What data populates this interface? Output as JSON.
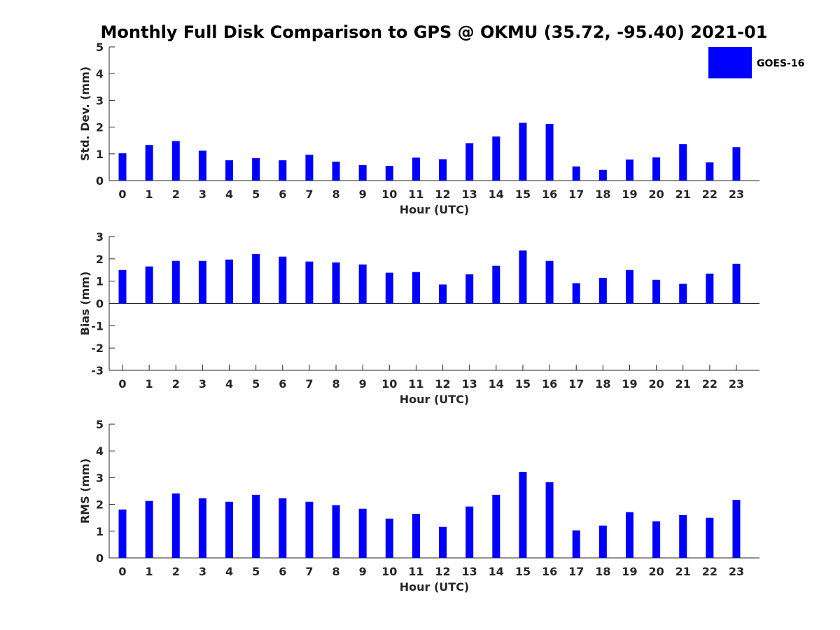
{
  "title": "Monthly Full Disk Comparison to GPS @ OKMU (35.72, -95.40) 2021-01",
  "legend": {
    "label": "GOES-16",
    "color": "#0000ff"
  },
  "chart_data": [
    {
      "type": "bar",
      "name": "std-dev",
      "xlabel": "Hour (UTC)",
      "ylabel": "Std. Dev. (mm)",
      "ylim": [
        0,
        5
      ],
      "yticks": [
        0,
        1,
        2,
        3,
        4,
        5
      ],
      "categories": [
        "0",
        "1",
        "2",
        "3",
        "4",
        "5",
        "6",
        "7",
        "8",
        "9",
        "10",
        "11",
        "12",
        "13",
        "14",
        "15",
        "16",
        "17",
        "18",
        "19",
        "20",
        "21",
        "22",
        "23"
      ],
      "series": [
        {
          "name": "GOES-16",
          "values": [
            1.02,
            1.33,
            1.48,
            1.12,
            0.76,
            0.84,
            0.76,
            0.97,
            0.71,
            0.58,
            0.55,
            0.86,
            0.8,
            1.4,
            1.65,
            2.16,
            2.12,
            0.53,
            0.4,
            0.79,
            0.87,
            1.36,
            0.68,
            1.25
          ]
        }
      ]
    },
    {
      "type": "bar",
      "name": "bias",
      "xlabel": "Hour (UTC)",
      "ylabel": "Bias (mm)",
      "ylim": [
        -3,
        3
      ],
      "yticks": [
        -3,
        -2,
        -1,
        0,
        1,
        2,
        3
      ],
      "categories": [
        "0",
        "1",
        "2",
        "3",
        "4",
        "5",
        "6",
        "7",
        "8",
        "9",
        "10",
        "11",
        "12",
        "13",
        "14",
        "15",
        "16",
        "17",
        "18",
        "19",
        "20",
        "21",
        "22",
        "23"
      ],
      "series": [
        {
          "name": "GOES-16",
          "values": [
            1.5,
            1.66,
            1.91,
            1.91,
            1.97,
            2.22,
            2.1,
            1.88,
            1.84,
            1.75,
            1.38,
            1.41,
            0.85,
            1.31,
            1.69,
            2.38,
            1.91,
            0.91,
            1.15,
            1.5,
            1.06,
            0.88,
            1.34,
            1.78
          ]
        }
      ]
    },
    {
      "type": "bar",
      "name": "rms",
      "xlabel": "Hour (UTC)",
      "ylabel": "RMS (mm)",
      "ylim": [
        0,
        5
      ],
      "yticks": [
        0,
        1,
        2,
        3,
        4,
        5
      ],
      "categories": [
        "0",
        "1",
        "2",
        "3",
        "4",
        "5",
        "6",
        "7",
        "8",
        "9",
        "10",
        "11",
        "12",
        "13",
        "14",
        "15",
        "16",
        "17",
        "18",
        "19",
        "20",
        "21",
        "22",
        "23"
      ],
      "series": [
        {
          "name": "GOES-16",
          "values": [
            1.81,
            2.13,
            2.41,
            2.23,
            2.1,
            2.36,
            2.23,
            2.1,
            1.97,
            1.84,
            1.47,
            1.65,
            1.16,
            1.92,
            2.36,
            3.22,
            2.83,
            1.03,
            1.21,
            1.71,
            1.37,
            1.6,
            1.5,
            2.17
          ]
        }
      ]
    }
  ]
}
